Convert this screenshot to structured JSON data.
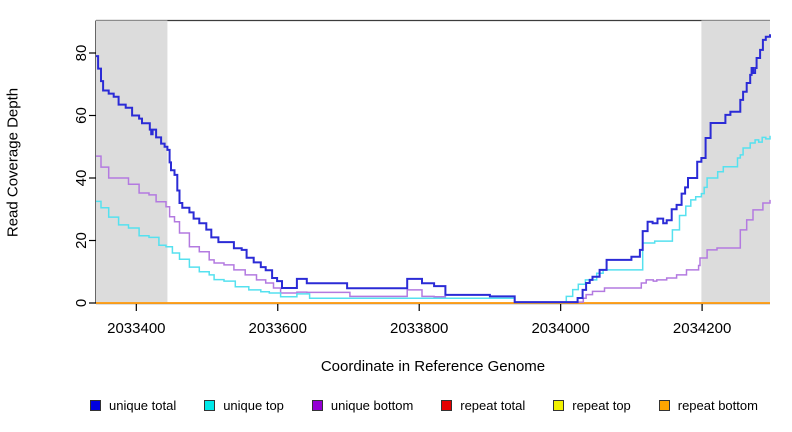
{
  "chart_data": {
    "type": "line",
    "step": true,
    "title": "",
    "xlabel": "Coordinate in Reference Genome",
    "ylabel": "Read Coverage Depth",
    "xlim": [
      2033343,
      2034296
    ],
    "ylim": [
      0,
      90
    ],
    "x_ticks": [
      2033400,
      2033600,
      2033800,
      2034000,
      2034200
    ],
    "y_ticks": [
      0,
      20,
      40,
      60,
      80
    ],
    "grid": false,
    "legend_position": "bottom",
    "background_color": "#ffffff",
    "shaded_regions": [
      {
        "x0": 2033343,
        "x1": 2033444,
        "color": "#dcdcdc"
      },
      {
        "x0": 2034199,
        "x1": 2034296,
        "color": "#dcdcdc"
      }
    ],
    "series": [
      {
        "name": "repeat total",
        "color": "#e60000",
        "legend_color": "#e60000",
        "width": 1.6,
        "points": [
          [
            2033343,
            0
          ],
          [
            2034296,
            0
          ]
        ]
      },
      {
        "name": "repeat top",
        "color": "#f2f200",
        "legend_color": "#f2f200",
        "width": 1.6,
        "points": [
          [
            2033343,
            0
          ],
          [
            2034296,
            0
          ]
        ]
      },
      {
        "name": "repeat bottom",
        "color": "#ffa020",
        "legend_color": "#ffa500",
        "width": 1.8,
        "points": [
          [
            2033343,
            0
          ],
          [
            2034296,
            0
          ]
        ]
      },
      {
        "name": "unique bottom",
        "color": "#b37ae0",
        "legend_color": "#9400d3",
        "width": 1.5,
        "points": [
          [
            2033343,
            47
          ],
          [
            2033350,
            43.5
          ],
          [
            2033361,
            40
          ],
          [
            2033389,
            38
          ],
          [
            2033404,
            35.2
          ],
          [
            2033418,
            34.6
          ],
          [
            2033428,
            32.4
          ],
          [
            2033442,
            30.8
          ],
          [
            2033447,
            27.6
          ],
          [
            2033454,
            26
          ],
          [
            2033461,
            22.4
          ],
          [
            2033475,
            18
          ],
          [
            2033489,
            16.4
          ],
          [
            2033503,
            13.8
          ],
          [
            2033510,
            12.8
          ],
          [
            2033524,
            12.2
          ],
          [
            2033538,
            10.6
          ],
          [
            2033554,
            9
          ],
          [
            2033570,
            7.4
          ],
          [
            2033583,
            6.4
          ],
          [
            2033594,
            4.8
          ],
          [
            2033604,
            3.2
          ],
          [
            2033627,
            3.5
          ],
          [
            2033641,
            3.4
          ],
          [
            2033702,
            2.1
          ],
          [
            2033783,
            4.2
          ],
          [
            2033804,
            2.1
          ],
          [
            2033821,
            2
          ],
          [
            2033837,
            1.5
          ],
          [
            2033935,
            0.3
          ],
          [
            2034020,
            0.3
          ],
          [
            2034032,
            1.5
          ],
          [
            2034036,
            2.7
          ],
          [
            2034045,
            3.7
          ],
          [
            2034062,
            4.8
          ],
          [
            2034114,
            6.4
          ],
          [
            2034121,
            7.4
          ],
          [
            2034131,
            7
          ],
          [
            2034136,
            7.4
          ],
          [
            2034150,
            8
          ],
          [
            2034164,
            9
          ],
          [
            2034178,
            10.6
          ],
          [
            2034195,
            12
          ],
          [
            2034197,
            14.4
          ],
          [
            2034207,
            17
          ],
          [
            2034221,
            17.6
          ],
          [
            2034254,
            23.4
          ],
          [
            2034263,
            26.6
          ],
          [
            2034272,
            29.8
          ],
          [
            2034286,
            32
          ],
          [
            2034296,
            33
          ]
        ]
      },
      {
        "name": "unique top",
        "color": "#55e1ef",
        "legend_color": "#00e8e8",
        "width": 1.5,
        "points": [
          [
            2033343,
            32.5
          ],
          [
            2033350,
            30.5
          ],
          [
            2033361,
            27.5
          ],
          [
            2033375,
            25
          ],
          [
            2033389,
            24
          ],
          [
            2033404,
            21.5
          ],
          [
            2033418,
            21
          ],
          [
            2033432,
            18.5
          ],
          [
            2033442,
            18
          ],
          [
            2033451,
            16
          ],
          [
            2033461,
            14
          ],
          [
            2033475,
            11.5
          ],
          [
            2033489,
            10
          ],
          [
            2033503,
            9
          ],
          [
            2033510,
            7.5
          ],
          [
            2033524,
            7
          ],
          [
            2033540,
            5.2
          ],
          [
            2033559,
            4.2
          ],
          [
            2033576,
            3.6
          ],
          [
            2033588,
            3.2
          ],
          [
            2033604,
            2
          ],
          [
            2033627,
            2.9
          ],
          [
            2033645,
            1.5
          ],
          [
            2033935,
            0.2
          ],
          [
            2034008,
            2.1
          ],
          [
            2034017,
            4.3
          ],
          [
            2034025,
            6
          ],
          [
            2034035,
            7.4
          ],
          [
            2034051,
            9.5
          ],
          [
            2034060,
            10.6
          ],
          [
            2034116,
            19.2
          ],
          [
            2034133,
            19.8
          ],
          [
            2034158,
            23.4
          ],
          [
            2034168,
            28
          ],
          [
            2034177,
            31
          ],
          [
            2034184,
            33
          ],
          [
            2034191,
            34
          ],
          [
            2034199,
            35
          ],
          [
            2034203,
            37
          ],
          [
            2034207,
            40
          ],
          [
            2034222,
            42
          ],
          [
            2034230,
            43.6
          ],
          [
            2034250,
            46.4
          ],
          [
            2034254,
            47.4
          ],
          [
            2034258,
            49.6
          ],
          [
            2034268,
            51.2
          ],
          [
            2034275,
            52.2
          ],
          [
            2034280,
            51.5
          ],
          [
            2034285,
            53
          ],
          [
            2034290,
            52.5
          ],
          [
            2034296,
            53.5
          ]
        ]
      },
      {
        "name": "unique total",
        "color": "#2b2bd6",
        "legend_color": "#0000e0",
        "width": 2,
        "points": [
          [
            2033343,
            79
          ],
          [
            2033346,
            75
          ],
          [
            2033350,
            71
          ],
          [
            2033353,
            68
          ],
          [
            2033361,
            67
          ],
          [
            2033368,
            66
          ],
          [
            2033375,
            63.5
          ],
          [
            2033385,
            62.5
          ],
          [
            2033394,
            60
          ],
          [
            2033404,
            59
          ],
          [
            2033408,
            57.5
          ],
          [
            2033419,
            55.5
          ],
          [
            2033421,
            54
          ],
          [
            2033423,
            55.5
          ],
          [
            2033428,
            53
          ],
          [
            2033435,
            51
          ],
          [
            2033440,
            50
          ],
          [
            2033444,
            49
          ],
          [
            2033447,
            45
          ],
          [
            2033449,
            42.5
          ],
          [
            2033454,
            41
          ],
          [
            2033458,
            36
          ],
          [
            2033461,
            32
          ],
          [
            2033465,
            30.5
          ],
          [
            2033475,
            29
          ],
          [
            2033481,
            27
          ],
          [
            2033489,
            25.5
          ],
          [
            2033499,
            23.5
          ],
          [
            2033506,
            21
          ],
          [
            2033516,
            19.5
          ],
          [
            2033538,
            17.5
          ],
          [
            2033549,
            17
          ],
          [
            2033556,
            14.5
          ],
          [
            2033566,
            13
          ],
          [
            2033576,
            11.5
          ],
          [
            2033583,
            10.5
          ],
          [
            2033592,
            8
          ],
          [
            2033599,
            7
          ],
          [
            2033606,
            4.8
          ],
          [
            2033627,
            7.7
          ],
          [
            2033641,
            6.3
          ],
          [
            2033698,
            4.7
          ],
          [
            2033783,
            7.7
          ],
          [
            2033804,
            6.3
          ],
          [
            2033821,
            5.4
          ],
          [
            2033837,
            2.6
          ],
          [
            2033900,
            2.1
          ],
          [
            2033935,
            0.3
          ],
          [
            2034024,
            1.6
          ],
          [
            2034031,
            4.2
          ],
          [
            2034036,
            6.4
          ],
          [
            2034041,
            7.4
          ],
          [
            2034045,
            8.4
          ],
          [
            2034055,
            10.6
          ],
          [
            2034065,
            13.8
          ],
          [
            2034100,
            14.8
          ],
          [
            2034112,
            17
          ],
          [
            2034116,
            23
          ],
          [
            2034123,
            26
          ],
          [
            2034130,
            25.5
          ],
          [
            2034137,
            27
          ],
          [
            2034145,
            25.5
          ],
          [
            2034150,
            26.5
          ],
          [
            2034157,
            30
          ],
          [
            2034164,
            31.4
          ],
          [
            2034171,
            35
          ],
          [
            2034176,
            37
          ],
          [
            2034180,
            40
          ],
          [
            2034193,
            45.2
          ],
          [
            2034199,
            46.4
          ],
          [
            2034205,
            52.8
          ],
          [
            2034212,
            57.6
          ],
          [
            2034233,
            60.2
          ],
          [
            2034240,
            61.2
          ],
          [
            2034254,
            65
          ],
          [
            2034258,
            67.6
          ],
          [
            2034263,
            70.4
          ],
          [
            2034268,
            73
          ],
          [
            2034270,
            75.2
          ],
          [
            2034272,
            73.6
          ],
          [
            2034275,
            75.2
          ],
          [
            2034277,
            78.4
          ],
          [
            2034282,
            81
          ],
          [
            2034286,
            84.2
          ],
          [
            2034290,
            85.2
          ],
          [
            2034296,
            86
          ]
        ]
      }
    ],
    "legend_order": [
      "unique total",
      "unique top",
      "unique bottom",
      "repeat total",
      "repeat top",
      "repeat bottom"
    ]
  }
}
